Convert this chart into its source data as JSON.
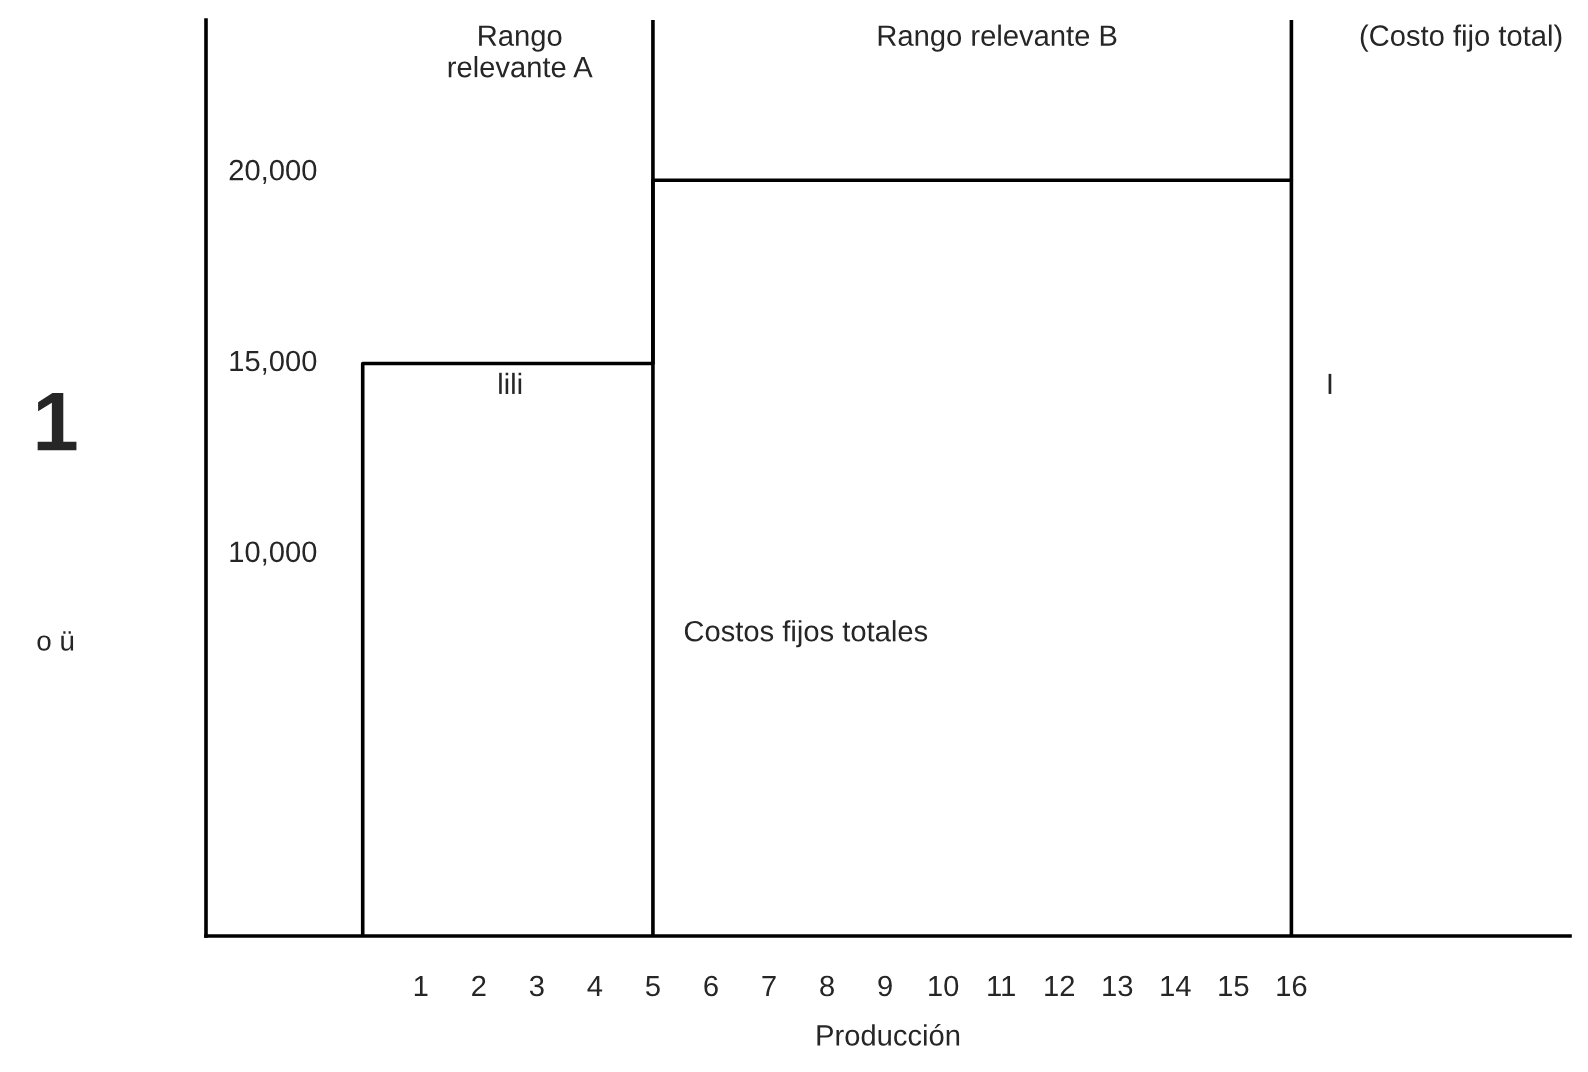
{
  "chart_data": {
    "type": "step",
    "xlabel": "Producción",
    "x": [
      0,
      0,
      5,
      16
    ],
    "series": [
      {
        "color": "#000000",
        "values": [
          0,
          15000,
          19800,
          19800
        ]
      }
    ],
    "xlim": [
      -2.7,
      20.8
    ],
    "ylim": [
      0,
      24000
    ],
    "xticks": [
      1,
      2,
      3,
      4,
      5,
      6,
      7,
      8,
      9,
      10,
      11,
      12,
      13,
      14,
      15,
      16
    ],
    "yticks": [
      {
        "value": 10000,
        "label": "10,000"
      },
      {
        "value": 15000,
        "label": "15,000"
      },
      {
        "value": 20000,
        "label": "20,000"
      }
    ],
    "ref_lines": [
      {
        "axis": "x",
        "value": 5,
        "color": "#000000"
      },
      {
        "axis": "x",
        "value": 16,
        "color": "#000000"
      }
    ],
    "annotations": [
      "(Costo fijo total)",
      "lili",
      "I",
      "Costos fijos totales",
      "1",
      "o ü",
      "Rango\nrelevante A",
      "Rango relevante B"
    ]
  }
}
